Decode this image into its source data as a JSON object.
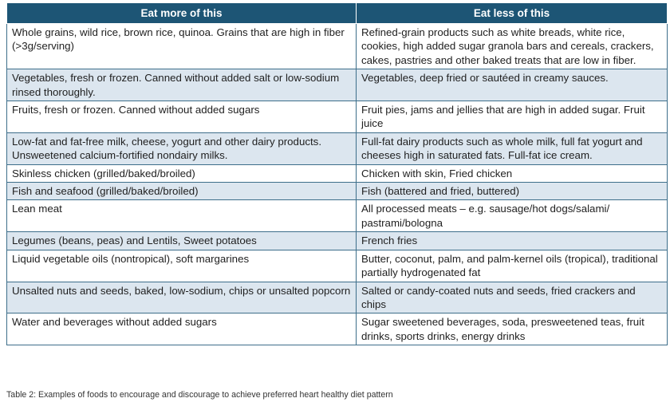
{
  "table": {
    "headers": [
      "Eat more of this",
      "Eat less of this"
    ],
    "rows": [
      [
        "Whole grains, wild rice, brown rice, quinoa. Grains that are high in fiber (>3g/serving)",
        "Refined-grain products such as white breads, white rice, cookies, high added sugar granola bars and cereals, crackers, cakes, pastries and other baked treats that are low in fiber."
      ],
      [
        "Vegetables, fresh or frozen. Canned without added salt or low-sodium rinsed thoroughly.",
        "Vegetables, deep fried or sautéed in creamy sauces."
      ],
      [
        "Fruits, fresh or frozen. Canned without added sugars",
        "Fruit pies, jams and jellies that are high in added sugar. Fruit juice"
      ],
      [
        "Low-fat and fat-free milk, cheese, yogurt and other dairy products. Unsweetened calcium-fortified nondairy milks.",
        "Full-fat dairy products such as whole milk, full fat yogurt and cheeses high in saturated fats. Full-fat ice cream."
      ],
      [
        "Skinless chicken (grilled/baked/broiled)",
        "Chicken with skin, Fried chicken"
      ],
      [
        "Fish and seafood (grilled/baked/broiled)",
        "Fish (battered and fried, buttered)"
      ],
      [
        "Lean meat",
        "All processed meats – e.g. sausage/hot dogs/salami/ pastrami/bologna"
      ],
      [
        "Legumes (beans, peas) and Lentils, Sweet potatoes",
        "French fries"
      ],
      [
        "Liquid vegetable oils (nontropical), soft margarines",
        "Butter, coconut, palm, and palm-kernel oils (tropical), traditional partially hydrogenated fat"
      ],
      [
        "Unsalted nuts and seeds, baked, low-sodium, chips or unsalted popcorn",
        "Salted or candy-coated nuts and seeds, fried crackers and chips"
      ],
      [
        "Water and beverages without added sugars",
        "Sugar sweetened beverages, soda, presweetened teas, fruit drinks, sports drinks, energy drinks"
      ]
    ]
  },
  "caption": "Table 2: Examples of foods to encourage and discourage to achieve preferred heart healthy diet pattern",
  "colors": {
    "header_bg": "#1d5575",
    "shaded_row_bg": "#dce6ef",
    "border": "#3d6e8a"
  }
}
